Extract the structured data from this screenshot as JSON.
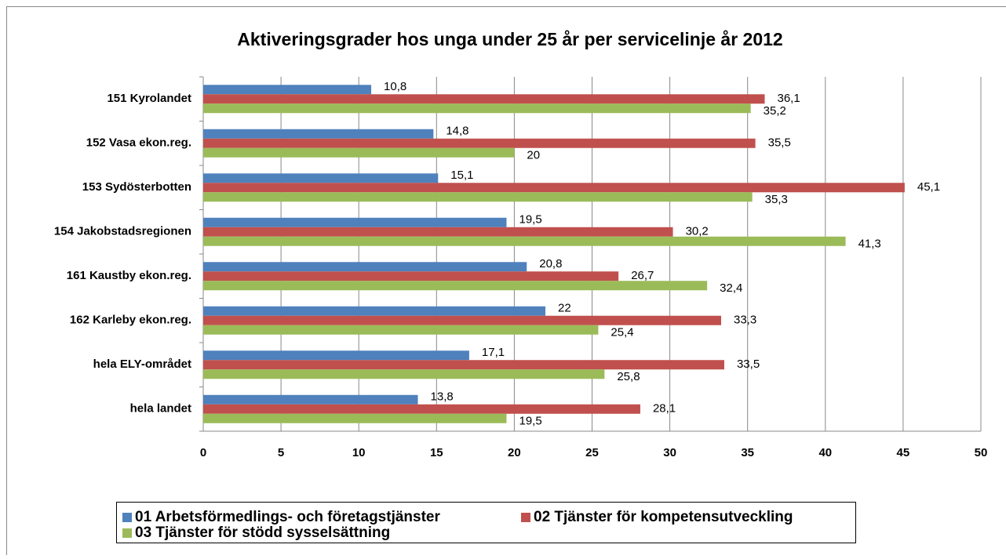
{
  "chart_data": {
    "type": "bar",
    "orientation": "horizontal",
    "title": "Aktiveringsgrader hos unga under 25 år per servicelinje år 2012",
    "categories": [
      "151 Kyrolandet",
      "152 Vasa ekon.reg.",
      "153 Sydösterbotten",
      "154 Jakobstadsregionen",
      "161 Kaustby ekon.reg.",
      "162 Karleby ekon.reg.",
      "hela ELY-området",
      "hela landet"
    ],
    "series": [
      {
        "name": "01 Arbetsförmedlings- och företagstjänster",
        "color": "#4f81bd",
        "values": [
          10.8,
          14.8,
          15.1,
          19.5,
          20.8,
          22,
          17.1,
          13.8
        ],
        "value_labels": [
          "10,8",
          "14,8",
          "15,1",
          "19,5",
          "20,8",
          "22",
          "17,1",
          "13,8"
        ]
      },
      {
        "name": "02 Tjänster för kompetensutveckling",
        "color": "#c0504d",
        "values": [
          36.1,
          35.5,
          45.1,
          30.2,
          26.7,
          33.3,
          33.5,
          28.1
        ],
        "value_labels": [
          "36,1",
          "35,5",
          "45,1",
          "30,2",
          "26,7",
          "33,3",
          "33,5",
          "28,1"
        ]
      },
      {
        "name": "03 Tjänster för stödd sysselsättning",
        "color": "#9bbb59",
        "values": [
          35.2,
          20,
          35.3,
          41.3,
          32.4,
          25.4,
          25.8,
          19.5
        ],
        "value_labels": [
          "35,2",
          "20",
          "35,3",
          "41,3",
          "32,4",
          "25,4",
          "25,8",
          "19,5"
        ]
      }
    ],
    "xlim": [
      0,
      50
    ],
    "xticks": [
      0,
      5,
      10,
      15,
      20,
      25,
      30,
      35,
      40,
      45,
      50
    ],
    "grid": true,
    "legend": "bottom"
  }
}
